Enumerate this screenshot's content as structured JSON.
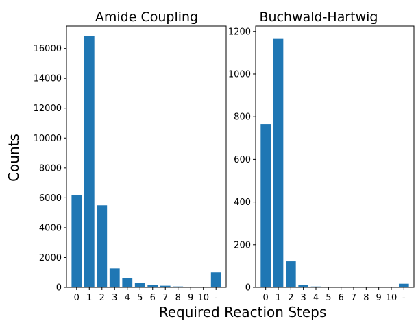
{
  "figure": {
    "ylabel": "Counts",
    "xlabel": "Required Reaction Steps"
  },
  "colors": {
    "bar": "#1f77b4",
    "axis": "#000000",
    "background": "#ffffff"
  },
  "chart_data": [
    {
      "type": "bar",
      "title": "Amide Coupling",
      "categories": [
        "0",
        "1",
        "2",
        "3",
        "4",
        "5",
        "6",
        "7",
        "8",
        "9",
        "10",
        "-"
      ],
      "values": [
        6200,
        16850,
        5500,
        1270,
        600,
        320,
        170,
        110,
        60,
        40,
        20,
        1000
      ],
      "ylim": [
        0,
        17500
      ],
      "yticks": [
        0,
        2000,
        4000,
        6000,
        8000,
        10000,
        12000,
        14000,
        16000
      ],
      "xlabel": "",
      "ylabel": "Counts",
      "grid": false
    },
    {
      "type": "bar",
      "title": "Buchwald-Hartwig",
      "categories": [
        "0",
        "1",
        "2",
        "3",
        "4",
        "5",
        "6",
        "7",
        "8",
        "9",
        "10",
        "-"
      ],
      "values": [
        765,
        1165,
        122,
        12,
        4,
        3,
        1,
        0,
        0,
        0,
        0,
        17
      ],
      "ylim": [
        0,
        1225
      ],
      "yticks": [
        0,
        200,
        400,
        600,
        800,
        1000,
        1200
      ],
      "xlabel": "",
      "ylabel": "",
      "grid": false
    }
  ]
}
